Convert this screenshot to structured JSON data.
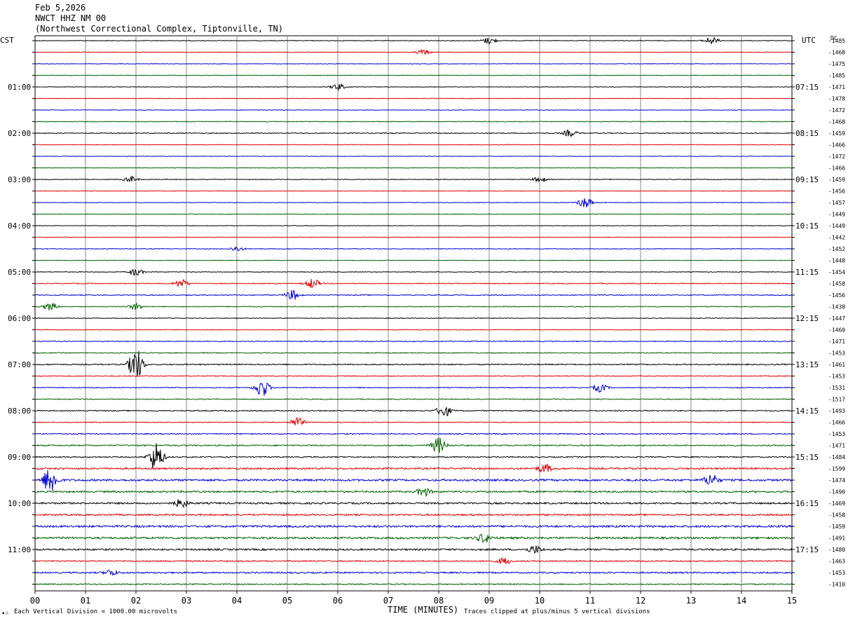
{
  "header": {
    "date": "Feb 5,2026",
    "station": "NWCT HHZ NM 00",
    "location": "(Northwest Correctional Complex, Tiptonville, TN)"
  },
  "left_tz": "CST",
  "right_tz": "UTC",
  "dc_label": "DC",
  "footer": {
    "corner_glyph": "•˄",
    "scale_note": "Each Vertical Division = 1000.00 microvolts",
    "x_label": "TIME (MINUTES)",
    "clip_note": "Traces clipped at plus/minus 5 vertical divisions"
  },
  "colors": {
    "trace_cycle": [
      "#000000",
      "#e00000",
      "#0000d0",
      "#006000"
    ],
    "grid": "#888888",
    "background": "#ffffff"
  },
  "chart_data": {
    "type": "line",
    "title": "NWCT HHZ NM 00",
    "xlabel": "TIME (MINUTES)",
    "xlim": [
      0,
      15
    ],
    "x_ticks": [
      "00",
      "01",
      "02",
      "03",
      "04",
      "05",
      "06",
      "07",
      "08",
      "09",
      "10",
      "11",
      "12",
      "13",
      "14",
      "15"
    ],
    "minutes_per_line": 15,
    "line_count": 48,
    "left_time_labels": [
      {
        "line": 4,
        "label": "01:00"
      },
      {
        "line": 8,
        "label": "02:00"
      },
      {
        "line": 12,
        "label": "03:00"
      },
      {
        "line": 16,
        "label": "04:00"
      },
      {
        "line": 20,
        "label": "05:00"
      },
      {
        "line": 24,
        "label": "06:00"
      },
      {
        "line": 28,
        "label": "07:00"
      },
      {
        "line": 32,
        "label": "08:00"
      },
      {
        "line": 36,
        "label": "09:00"
      },
      {
        "line": 40,
        "label": "10:00"
      },
      {
        "line": 44,
        "label": "11:00"
      }
    ],
    "right_time_labels": [
      {
        "line": 0,
        "label": "UTC"
      },
      {
        "line": 4,
        "label": "07:15"
      },
      {
        "line": 8,
        "label": "08:15"
      },
      {
        "line": 12,
        "label": "09:15"
      },
      {
        "line": 16,
        "label": "10:15"
      },
      {
        "line": 20,
        "label": "11:15"
      },
      {
        "line": 24,
        "label": "12:15"
      },
      {
        "line": 28,
        "label": "13:15"
      },
      {
        "line": 32,
        "label": "14:15"
      },
      {
        "line": 36,
        "label": "15:15"
      },
      {
        "line": 40,
        "label": "16:15"
      },
      {
        "line": 44,
        "label": "17:15"
      }
    ],
    "dc_offsets": [
      "-1485",
      "-1468",
      "-1475",
      "-1485",
      "-1471",
      "-1478",
      "-1472",
      "-1468",
      "-1459",
      "-1466",
      "-1472",
      "-1466",
      "-1459",
      "-1456",
      "-1457",
      "-1449",
      "-1449",
      "-1442",
      "-1452",
      "-1448",
      "-1454",
      "-1458",
      "-1456",
      "-1438",
      "-1447",
      "-1460",
      "-1471",
      "-1453",
      "-1461",
      "-1453",
      "-1531",
      "-1517",
      "-1493",
      "-1466",
      "-1453",
      "-1471",
      "-1484",
      "-1599",
      "-1474",
      "-1490",
      "-1469",
      "-1458",
      "-1459",
      "-1491",
      "-1480",
      "-1463",
      "-1453",
      "-1410"
    ],
    "noise_level": [
      0.12,
      0.1,
      0.1,
      0.1,
      0.1,
      0.1,
      0.1,
      0.12,
      0.15,
      0.1,
      0.1,
      0.1,
      0.12,
      0.1,
      0.1,
      0.1,
      0.1,
      0.1,
      0.12,
      0.1,
      0.12,
      0.15,
      0.15,
      0.15,
      0.12,
      0.12,
      0.15,
      0.15,
      0.2,
      0.15,
      0.15,
      0.15,
      0.18,
      0.15,
      0.18,
      0.22,
      0.2,
      0.3,
      0.35,
      0.3,
      0.3,
      0.28,
      0.35,
      0.35,
      0.3,
      0.22,
      0.25,
      0.2
    ],
    "events": [
      {
        "line": 0,
        "minute": 9.0,
        "amp": 1.2
      },
      {
        "line": 0,
        "minute": 13.4,
        "amp": 1.3
      },
      {
        "line": 1,
        "minute": 7.7,
        "amp": 1.0
      },
      {
        "line": 4,
        "minute": 6.0,
        "amp": 1.2
      },
      {
        "line": 8,
        "minute": 10.6,
        "amp": 1.2
      },
      {
        "line": 12,
        "minute": 1.9,
        "amp": 1.0
      },
      {
        "line": 12,
        "minute": 10.0,
        "amp": 1.0
      },
      {
        "line": 14,
        "minute": 10.9,
        "amp": 2.0
      },
      {
        "line": 18,
        "minute": 4.0,
        "amp": 0.9
      },
      {
        "line": 20,
        "minute": 2.0,
        "amp": 1.3
      },
      {
        "line": 21,
        "minute": 2.9,
        "amp": 1.5
      },
      {
        "line": 21,
        "minute": 5.5,
        "amp": 1.8
      },
      {
        "line": 22,
        "minute": 5.1,
        "amp": 1.8
      },
      {
        "line": 23,
        "minute": 0.3,
        "amp": 1.3
      },
      {
        "line": 23,
        "minute": 2.0,
        "amp": 1.1
      },
      {
        "line": 28,
        "minute": 2.0,
        "amp": 6.0
      },
      {
        "line": 30,
        "minute": 4.5,
        "amp": 3.5
      },
      {
        "line": 30,
        "minute": 11.2,
        "amp": 1.5
      },
      {
        "line": 32,
        "minute": 8.1,
        "amp": 2.2
      },
      {
        "line": 33,
        "minute": 5.2,
        "amp": 1.8
      },
      {
        "line": 35,
        "minute": 8.0,
        "amp": 2.8
      },
      {
        "line": 36,
        "minute": 2.4,
        "amp": 5.5
      },
      {
        "line": 37,
        "minute": 10.1,
        "amp": 1.5
      },
      {
        "line": 38,
        "minute": 0.3,
        "amp": 5.0
      },
      {
        "line": 38,
        "minute": 13.4,
        "amp": 2.2
      },
      {
        "line": 39,
        "minute": 7.7,
        "amp": 1.5
      },
      {
        "line": 40,
        "minute": 2.9,
        "amp": 1.5
      },
      {
        "line": 43,
        "minute": 8.9,
        "amp": 1.6
      },
      {
        "line": 44,
        "minute": 9.9,
        "amp": 1.4
      },
      {
        "line": 45,
        "minute": 9.3,
        "amp": 1.2
      },
      {
        "line": 46,
        "minute": 1.5,
        "amp": 1.1
      }
    ]
  }
}
